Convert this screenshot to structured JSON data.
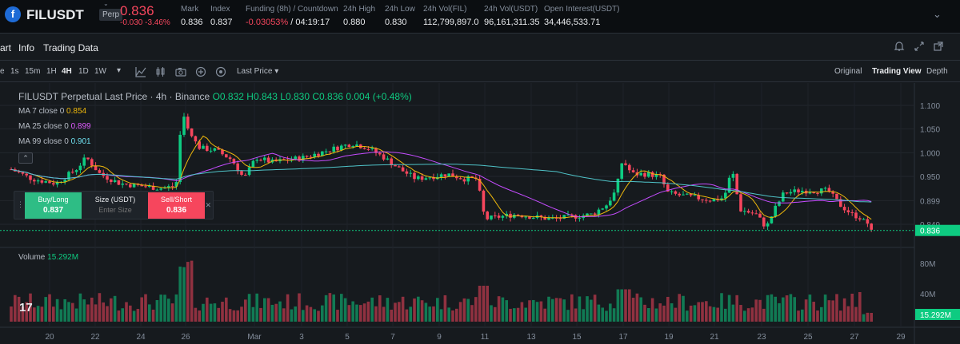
{
  "header": {
    "logo_glyph": "f",
    "symbol": "FILUSDT",
    "badge": "Perp",
    "badge_chevron": "⌄",
    "last_price": "0.836",
    "change": "-0.030 -3.46%",
    "stats": [
      {
        "label": "Mark",
        "value": "0.836"
      },
      {
        "label": "Index",
        "value": "0.837"
      },
      {
        "label": "Funding (8h) / Countdown",
        "value_red": "-0.03053%",
        "value": " / 04:19:17"
      },
      {
        "label": "24h High",
        "value": "0.880"
      },
      {
        "label": "24h Low",
        "value": "0.830"
      },
      {
        "label": "24h Vol(FIL)",
        "value": "112,799,897.0"
      },
      {
        "label": "24h Vol(USDT)",
        "value": "96,161,311.35"
      },
      {
        "label": "Open Interest(USDT)",
        "value": "34,446,533.71"
      }
    ],
    "more_chevron": "⌄"
  },
  "tabs": [
    "art",
    "Info",
    "Trading Data"
  ],
  "toolbar": {
    "intervals": [
      "e",
      "1s",
      "15m",
      "1H",
      "4H",
      "1D",
      "1W"
    ],
    "active_interval": "4H",
    "dropdown": "▾",
    "price_type": "Last Price",
    "views": [
      "Original",
      "Trading View",
      "Depth"
    ],
    "active_view": "Trading View"
  },
  "legend": {
    "title": "FILUSDT Perpetual Last Price · 4h · Binance",
    "ohlc": "O0.832 H0.843 L0.830 C0.836 0.004 (+0.48%)",
    "ma": [
      {
        "label": "MA 7 close 0",
        "value": "0.854",
        "color": "#f0b90b"
      },
      {
        "label": "MA 25 close 0",
        "value": "0.899",
        "color": "#e05bff"
      },
      {
        "label": "MA 99 close 0",
        "value": "0.901",
        "color": "#6fe0f0"
      }
    ],
    "volume_label": "Volume",
    "volume_value": "15.292M"
  },
  "order_widget": {
    "buy_label": "Buy/Long",
    "buy_price": "0.837",
    "size_label": "Size (USDT)",
    "size_placeholder": "Enter Size",
    "sell_label": "Sell/Short",
    "sell_price": "0.836",
    "collapse": "⌃",
    "close": "✕",
    "grip": "⋮"
  },
  "tv_logo": "17",
  "chart_data": {
    "type": "candlestick",
    "price_axis": [
      "1.100",
      "1.050",
      "1.000",
      "0.950",
      "0.899",
      "0.849"
    ],
    "current_price": "0.836",
    "volume_axis": [
      "80M",
      "40M"
    ],
    "current_volume": "15.292M",
    "x_labels": [
      "20",
      "22",
      "24",
      "26",
      "Mar",
      "3",
      "5",
      "7",
      "9",
      "11",
      "13",
      "15",
      "17",
      "19",
      "21",
      "23",
      "25",
      "27",
      "29"
    ],
    "colors": {
      "up": "#0ecb81",
      "down": "#f6465d",
      "ma7": "#f0b90b",
      "ma25": "#c54cff",
      "ma99": "#4fc3c8"
    }
  }
}
